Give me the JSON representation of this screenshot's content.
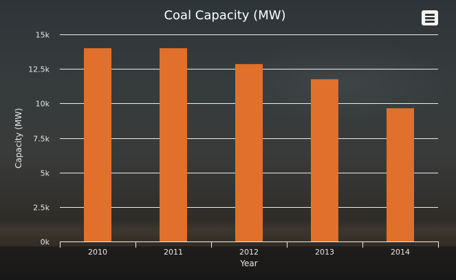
{
  "chart_data": {
    "type": "bar",
    "title": "Coal Capacity (MW)",
    "xlabel": "Year",
    "ylabel": "Capacity (MW)",
    "categories": [
      "2010",
      "2011",
      "2012",
      "2013",
      "2014"
    ],
    "values": [
      14000,
      14000,
      12850,
      11750,
      9650
    ],
    "ylim": [
      0,
      15000
    ],
    "yticks": [
      0,
      2500,
      5000,
      7500,
      10000,
      12500,
      15000
    ],
    "ytick_labels": [
      "0k",
      "2.5k",
      "5k",
      "7.5k",
      "10k",
      "12.5k",
      "15k"
    ],
    "grid": true,
    "legend": "none",
    "colors": {
      "bar": "#e0702c",
      "grid": "#f0f0f0",
      "text": "#e8e8e8"
    }
  },
  "toolbar": {
    "menu_icon": "hamburger-menu-icon"
  }
}
